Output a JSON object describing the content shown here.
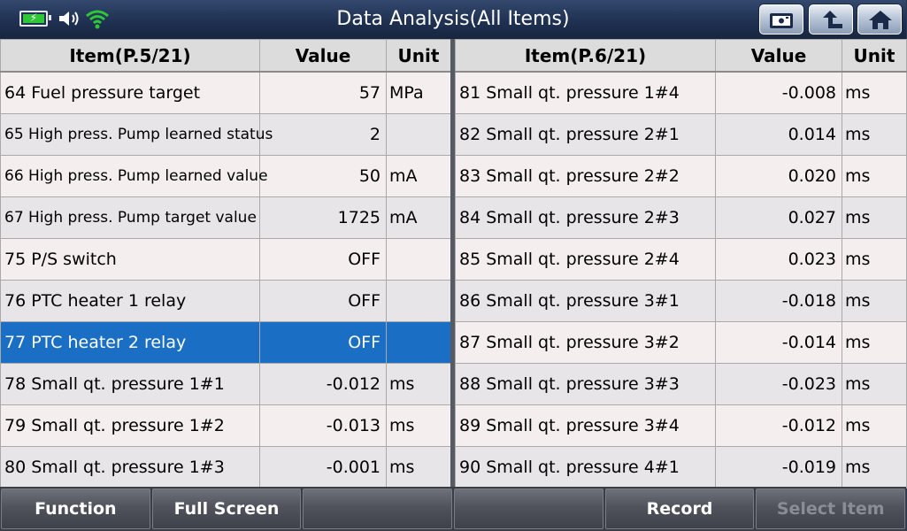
{
  "header": {
    "title": "Data Analysis(All Items)"
  },
  "left_table": {
    "headers": {
      "item": "Item(P.5/21)",
      "value": "Value",
      "unit": "Unit"
    },
    "rows": [
      {
        "item": "64 Fuel pressure target",
        "value": "57",
        "unit": "MPa"
      },
      {
        "item": "65 High press. Pump learned status",
        "value": "2",
        "unit": ""
      },
      {
        "item": "66 High press. Pump learned value",
        "value": "50",
        "unit": "mA"
      },
      {
        "item": "67 High press. Pump target value",
        "value": "1725",
        "unit": "mA"
      },
      {
        "item": "75 P/S switch",
        "value": "OFF",
        "unit": ""
      },
      {
        "item": "76 PTC heater 1 relay",
        "value": "OFF",
        "unit": ""
      },
      {
        "item": "77 PTC heater 2 relay",
        "value": "OFF",
        "unit": ""
      },
      {
        "item": "78 Small qt. pressure 1#1",
        "value": "-0.012",
        "unit": "ms"
      },
      {
        "item": "79 Small qt. pressure 1#2",
        "value": "-0.013",
        "unit": "ms"
      },
      {
        "item": "80 Small qt. pressure 1#3",
        "value": "-0.001",
        "unit": "ms"
      }
    ]
  },
  "right_table": {
    "headers": {
      "item": "Item(P.6/21)",
      "value": "Value",
      "unit": "Unit"
    },
    "rows": [
      {
        "item": "81 Small qt. pressure 1#4",
        "value": "-0.008",
        "unit": "ms"
      },
      {
        "item": "82 Small qt. pressure 2#1",
        "value": "0.014",
        "unit": "ms"
      },
      {
        "item": "83 Small qt. pressure 2#2",
        "value": "0.020",
        "unit": "ms"
      },
      {
        "item": "84 Small qt. pressure 2#3",
        "value": "0.027",
        "unit": "ms"
      },
      {
        "item": "85 Small qt. pressure 2#4",
        "value": "0.023",
        "unit": "ms"
      },
      {
        "item": "86 Small qt. pressure 3#1",
        "value": "-0.018",
        "unit": "ms"
      },
      {
        "item": "87 Small qt. pressure 3#2",
        "value": "-0.014",
        "unit": "ms"
      },
      {
        "item": "88 Small qt. pressure 3#3",
        "value": "-0.023",
        "unit": "ms"
      },
      {
        "item": "89 Small qt. pressure 3#4",
        "value": "-0.012",
        "unit": "ms"
      },
      {
        "item": "90 Small qt. pressure 4#1",
        "value": "-0.019",
        "unit": "ms"
      }
    ]
  },
  "bottom_bar": {
    "buttons": [
      {
        "label": "Function",
        "enabled": true
      },
      {
        "label": "Full Screen",
        "enabled": true
      },
      {
        "label": "",
        "enabled": true
      },
      {
        "label": "",
        "enabled": true
      },
      {
        "label": "Record",
        "enabled": true
      },
      {
        "label": "Select Item",
        "enabled": false
      }
    ]
  },
  "selected_row": "77 PTC heater 2 relay",
  "colors": {
    "header_bg": "#1f3152",
    "selected_row": "#1a6fc4",
    "battery_fill": "#2fc637",
    "wifi": "#2fc637",
    "disabled_text": "#8a8d96"
  },
  "icons": [
    "battery-icon",
    "speaker-icon",
    "wifi-icon",
    "screenshot-icon",
    "back-icon",
    "home-icon"
  ]
}
